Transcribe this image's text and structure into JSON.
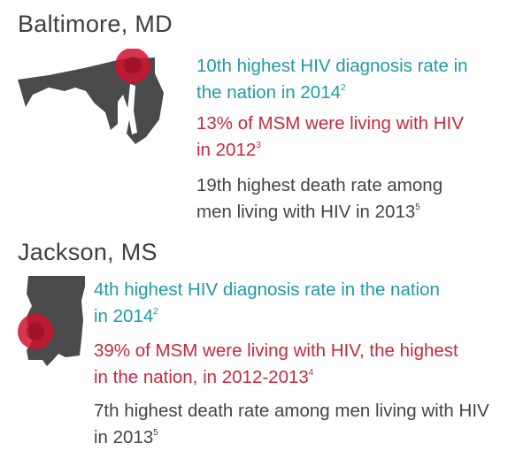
{
  "sections": [
    {
      "city": "Baltimore, MD",
      "state_map": "maryland-map",
      "facts": [
        {
          "text": "10th highest HIV diagnosis rate in",
          "text2": "the nation in 2014",
          "ref": "2",
          "color": "teal"
        },
        {
          "text": "13% of MSM were living with HIV",
          "text2": "in 2012",
          "ref": "3",
          "color": "red"
        },
        {
          "text": "19th highest death rate among",
          "text2": "men living with HIV in 2013",
          "ref": "5",
          "color": "gray"
        }
      ]
    },
    {
      "city": "Jackson, MS",
      "state_map": "mississippi-map",
      "facts": [
        {
          "text": "4th highest HIV diagnosis rate in the nation",
          "text2": "in 2014",
          "ref": "2",
          "color": "teal"
        },
        {
          "text": "39% of MSM were living with HIV, the highest",
          "text2": "in the nation, in 2012-2013",
          "ref": "4",
          "color": "red"
        },
        {
          "text": "7th highest death rate among men living with HIV",
          "text2": "in 2013",
          "ref": "5",
          "color": "gray"
        }
      ]
    }
  ],
  "colors": {
    "teal": "#1e9aa4",
    "red": "#c8283f",
    "gray": "#444444",
    "map": "#4a4a4c",
    "marker": "#d0102e"
  }
}
